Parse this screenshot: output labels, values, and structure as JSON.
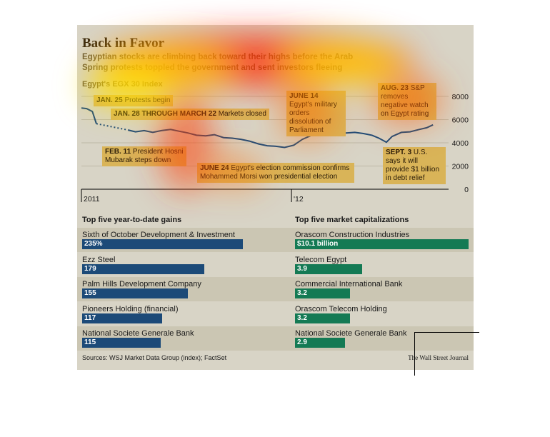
{
  "title": "Back in Favor",
  "subtitle": "Egyptian stocks are climbing back toward their highs before the Arab Spring protests toppled the government and sent investors fleeing",
  "index_label": "Egypt's EGX 30 Index",
  "annotations": {
    "jan25_bold": "JAN. 25",
    "jan25_text": "Protests begin",
    "jan28_bold": "JAN. 28 THROUGH MARCH 22",
    "jan28_text": "Markets closed",
    "feb11_bold": "FEB. 11",
    "feb11_text": "President Hosni Mubarak steps down",
    "june14_bold": "JUNE 14",
    "june14_text": "Egypt's military orders dissolution of Parliament",
    "june24_bold": "JUNE 24",
    "june24_text": "Egypt's election commission confirms Mohammed Morsi won presidential election",
    "aug23_bold": "AUG. 23",
    "aug23_text": "S&P removes negative watch on Egypt rating",
    "sept3_bold": "SEPT. 3",
    "sept3_text": "U.S. says it will provide $1 billion in debt relief"
  },
  "chart_data": [
    {
      "type": "line",
      "title": "Egypt's EGX 30 Index",
      "x_tick_labels": [
        "2011",
        "'12"
      ],
      "y_ticks": [
        0,
        2000,
        4000,
        6000,
        8000
      ],
      "ylim": [
        0,
        8000
      ],
      "grid": true,
      "series": [
        {
          "x": [
            "2011-01-01",
            "2011-01-10",
            "2011-01-20",
            "2011-01-27",
            "2011-03-23",
            "2011-04-05",
            "2011-04-20",
            "2011-05-05",
            "2011-05-20",
            "2011-06-05",
            "2011-06-20",
            "2011-07-05",
            "2011-07-20",
            "2011-08-05",
            "2011-08-20",
            "2011-09-05",
            "2011-09-20",
            "2011-10-05",
            "2011-10-20",
            "2011-11-05",
            "2011-11-20",
            "2011-12-05",
            "2011-12-20",
            "2012-01-05",
            "2012-01-20",
            "2012-02-05",
            "2012-02-20",
            "2012-03-05",
            "2012-03-20",
            "2012-04-05",
            "2012-04-20",
            "2012-05-05",
            "2012-05-20",
            "2012-06-01",
            "2012-06-14",
            "2012-06-24",
            "2012-07-10",
            "2012-07-25",
            "2012-08-10",
            "2012-08-23",
            "2012-09-03"
          ],
          "values": [
            7000,
            6950,
            6700,
            5650,
            5100,
            4950,
            5050,
            4900,
            5050,
            5150,
            5000,
            4850,
            4650,
            4600,
            4700,
            4450,
            4400,
            4300,
            4150,
            3900,
            3750,
            3700,
            3600,
            3800,
            4300,
            4650,
            4800,
            5050,
            4950,
            4850,
            4900,
            4800,
            4650,
            4400,
            4050,
            4550,
            4900,
            4950,
            5150,
            5300,
            5550
          ]
        }
      ]
    },
    {
      "type": "bar",
      "title": "Top five year-to-date gains",
      "categories": [
        "Sixth of October Development & Investment",
        "Ezz Steel",
        "Palm Hills Development Company",
        "Pioneers Holding (financial)",
        "National Societe Generale Bank"
      ],
      "values": [
        235,
        179,
        155,
        117,
        115
      ],
      "value_labels": [
        "235%",
        "179",
        "155",
        "117",
        "115"
      ],
      "color": "#1c4a78"
    },
    {
      "type": "bar",
      "title": "Top five market capitalizations",
      "categories": [
        "Orascom Construction Industries",
        "Telecom Egypt",
        "Commercial International Bank",
        "Orascom Telecom Holding",
        "National Societe Generale Bank"
      ],
      "values": [
        10.1,
        3.9,
        3.2,
        3.2,
        2.9
      ],
      "value_labels": [
        "$10.1 billion",
        "3.9",
        "3.2",
        "3.2",
        "2.9"
      ],
      "color": "#147a54"
    }
  ],
  "gains_title": "Top five year-to-date gains",
  "caps_title": "Top five market capitalizations",
  "gains": [
    {
      "name": "Sixth of October Development & Investment",
      "label": "235%",
      "value": 235
    },
    {
      "name": "Ezz Steel",
      "label": "179",
      "value": 179
    },
    {
      "name": "Palm Hills Development Company",
      "label": "155",
      "value": 155
    },
    {
      "name": "Pioneers Holding (financial)",
      "label": "117",
      "value": 117
    },
    {
      "name": "National Societe Generale Bank",
      "label": "115",
      "value": 115
    }
  ],
  "caps": [
    {
      "name": "Orascom Construction Industries",
      "label": "$10.1 billion",
      "value": 10.1
    },
    {
      "name": "Telecom Egypt",
      "label": "3.9",
      "value": 3.9
    },
    {
      "name": "Commercial International Bank",
      "label": "3.2",
      "value": 3.2
    },
    {
      "name": "Orascom Telecom Holding",
      "label": "3.2",
      "value": 3.2
    },
    {
      "name": "National Societe Generale Bank",
      "label": "2.9",
      "value": 2.9
    }
  ],
  "sources": "Sources: WSJ Market Data Group (index); FactSet",
  "credit": "The Wall Street Journal"
}
